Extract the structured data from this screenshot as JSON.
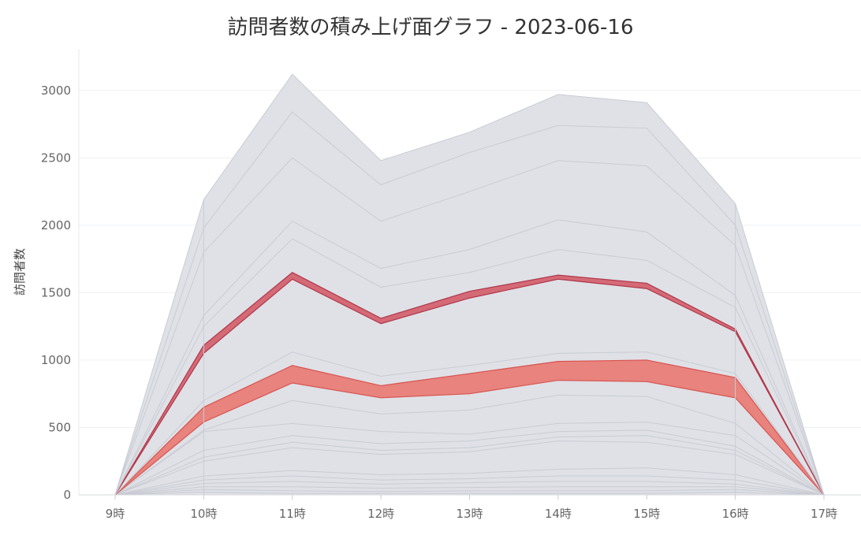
{
  "chart_data": {
    "type": "area",
    "stacked": true,
    "title": "訪問者数の積み上げ面グラフ - 2023-06-16",
    "ylabel": "訪問者数",
    "xlabel": "",
    "categories": [
      "9時",
      "10時",
      "11時",
      "12時",
      "13時",
      "14時",
      "15時",
      "16時",
      "17時"
    ],
    "ylim": [
      0,
      3300
    ],
    "yticks": [
      0,
      500,
      1000,
      1500,
      2000,
      2500,
      3000
    ],
    "grid": true,
    "colors": {
      "background_series": "#dfe1e6",
      "background_line": "#c9ccd4",
      "highlight_light": "#e8837e",
      "highlight_light_line": "#d9534f",
      "highlight_dark": "#d46a76",
      "highlight_dark_line": "#b0364a"
    },
    "stack_boundaries": [
      [
        0,
        20,
        10,
        10,
        10,
        10,
        10,
        20,
        0
      ],
      [
        0,
        40,
        30,
        25,
        30,
        30,
        30,
        40,
        0
      ],
      [
        0,
        60,
        60,
        50,
        55,
        60,
        60,
        60,
        0
      ],
      [
        0,
        85,
        100,
        80,
        90,
        100,
        100,
        80,
        0
      ],
      [
        0,
        110,
        140,
        110,
        120,
        140,
        140,
        110,
        0
      ],
      [
        0,
        140,
        180,
        150,
        160,
        190,
        200,
        150,
        0
      ],
      [
        0,
        250,
        350,
        300,
        320,
        400,
        390,
        300,
        0
      ],
      [
        0,
        280,
        390,
        330,
        350,
        430,
        440,
        330,
        0
      ],
      [
        0,
        330,
        440,
        380,
        400,
        470,
        480,
        360,
        0
      ],
      [
        0,
        470,
        530,
        470,
        450,
        530,
        540,
        440,
        0
      ],
      [
        0,
        480,
        700,
        600,
        630,
        740,
        730,
        530,
        0
      ],
      [
        0,
        540,
        830,
        720,
        750,
        850,
        840,
        720,
        0
      ],
      [
        0,
        650,
        960,
        810,
        900,
        990,
        1000,
        870,
        0
      ],
      [
        0,
        700,
        1060,
        880,
        960,
        1050,
        1060,
        900,
        0
      ],
      [
        0,
        1050,
        1600,
        1270,
        1460,
        1600,
        1530,
        1210,
        0
      ],
      [
        0,
        1110,
        1650,
        1310,
        1510,
        1630,
        1570,
        1230,
        0
      ],
      [
        0,
        1250,
        1900,
        1540,
        1650,
        1820,
        1740,
        1390,
        0
      ],
      [
        0,
        1330,
        2030,
        1680,
        1820,
        2040,
        1950,
        1480,
        0
      ],
      [
        0,
        1800,
        2500,
        2030,
        2250,
        2480,
        2440,
        1850,
        0
      ],
      [
        0,
        1980,
        2840,
        2300,
        2540,
        2740,
        2720,
        2000,
        0
      ],
      [
        0,
        2190,
        3120,
        2480,
        2690,
        2970,
        2910,
        2160,
        0
      ]
    ],
    "highlighted_bands": [
      {
        "lower_boundary": 11,
        "upper_boundary": 12,
        "shade": "light"
      },
      {
        "lower_boundary": 14,
        "upper_boundary": 15,
        "shade": "dark"
      }
    ]
  }
}
